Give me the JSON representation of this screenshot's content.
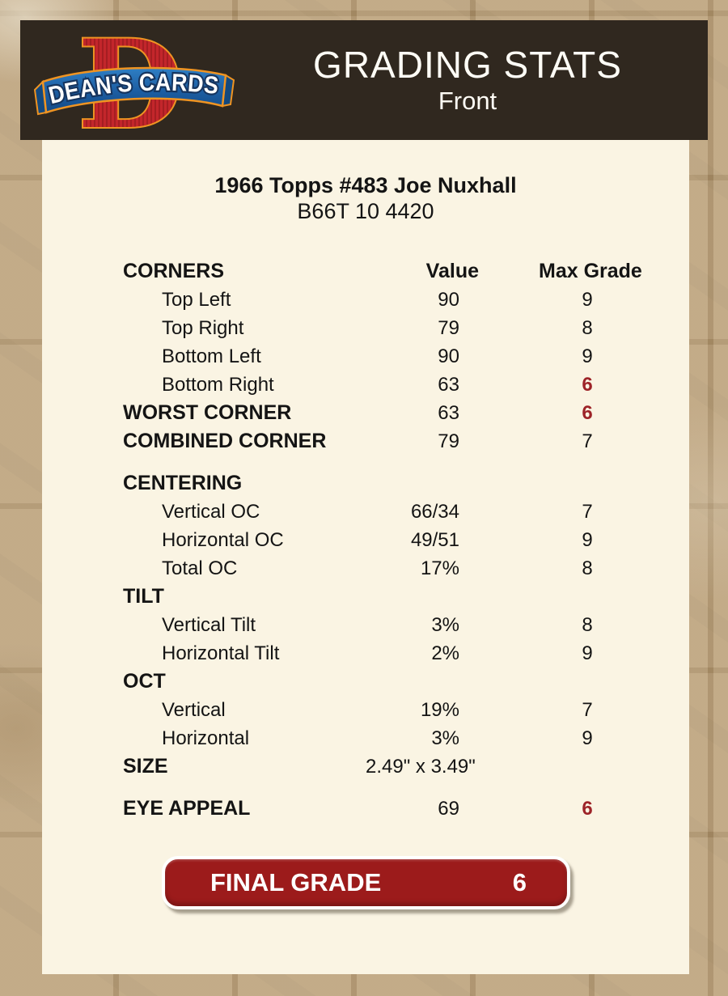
{
  "header": {
    "logo": {
      "monogram": "D",
      "banner_text": "DEAN'S CARDS"
    },
    "title": "GRADING STATS",
    "subtitle": "Front"
  },
  "card": {
    "title": "1966 Topps #483 Joe Nuxhall",
    "id": "B66T 10 4420"
  },
  "stats": {
    "rows": [
      {
        "kind": "header",
        "label": "CORNERS",
        "value": "Value",
        "grade": "Max Grade"
      },
      {
        "kind": "item",
        "label": "Top Left",
        "value": "90",
        "grade": "9"
      },
      {
        "kind": "item",
        "label": "Top Right",
        "value": "79",
        "grade": "8"
      },
      {
        "kind": "item",
        "label": "Bottom Left",
        "value": "90",
        "grade": "9"
      },
      {
        "kind": "item",
        "label": "Bottom Right",
        "value": "63",
        "grade": "6",
        "grade_red": true
      },
      {
        "kind": "total",
        "label": "WORST CORNER",
        "value": "63",
        "grade": "6",
        "grade_red": true
      },
      {
        "kind": "total",
        "label": "COMBINED CORNER",
        "value": "79",
        "grade": "7"
      },
      {
        "kind": "spacer"
      },
      {
        "kind": "section",
        "label": "CENTERING",
        "value": "",
        "grade": ""
      },
      {
        "kind": "item",
        "label": "Vertical OC",
        "value": "66/34",
        "grade": "7"
      },
      {
        "kind": "item",
        "label": "Horizontal OC",
        "value": "49/51",
        "grade": "9"
      },
      {
        "kind": "item",
        "label": "Total OC",
        "value": "17%",
        "grade": "8"
      },
      {
        "kind": "section",
        "label": "TILT",
        "value": "",
        "grade": ""
      },
      {
        "kind": "item",
        "label": "Vertical Tilt",
        "value": "3%",
        "grade": "8"
      },
      {
        "kind": "item",
        "label": "Horizontal Tilt",
        "value": "2%",
        "grade": "9"
      },
      {
        "kind": "section",
        "label": "OCT",
        "value": "",
        "grade": ""
      },
      {
        "kind": "item",
        "label": "Vertical",
        "value": "19%",
        "grade": "7"
      },
      {
        "kind": "item",
        "label": "Horizontal",
        "value": "3%",
        "grade": "9"
      },
      {
        "kind": "total",
        "label": "SIZE",
        "value": "2.49\" x 3.49\"",
        "grade": ""
      },
      {
        "kind": "spacer"
      },
      {
        "kind": "total",
        "label": "EYE APPEAL",
        "value": "69",
        "grade": "6",
        "grade_red": true
      }
    ]
  },
  "final_grade": {
    "label": "FINAL GRADE",
    "value": "6"
  },
  "colors": {
    "accent_red": "#9d2328",
    "button_red": "#9c1b1b",
    "header_bg": "#30281f",
    "panel_bg": "#faf4e3",
    "page_bg": "#b29770",
    "logo_red": "#c3262b",
    "logo_orange": "#ef9422",
    "ribbon_blue": "#1d5fa4"
  }
}
